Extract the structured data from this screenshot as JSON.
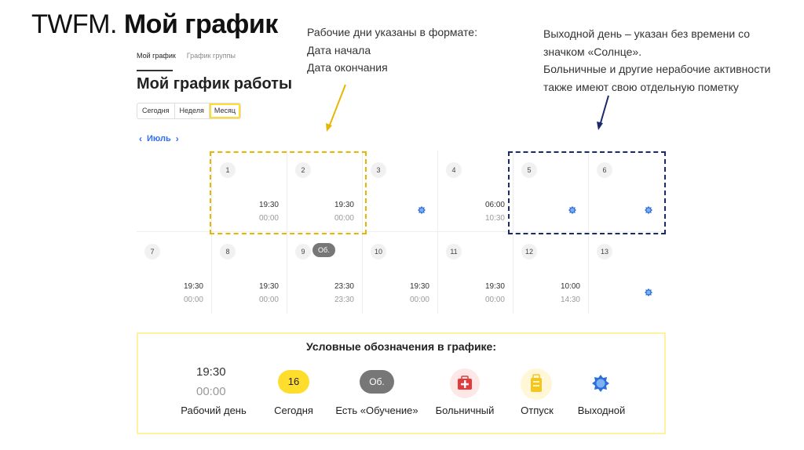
{
  "slide": {
    "title_prefix": "TWFM.",
    "title_main": "Мой график"
  },
  "notes": {
    "left": [
      "Рабочие дни указаны в формате:",
      "Дата начала",
      "Дата окончания"
    ],
    "right": [
      "Выходной день – указан без времени со",
      "значком «Солнце».",
      "Больничные и другие нерабочие активности",
      "также имеют свою отдельную пометку"
    ]
  },
  "app": {
    "tabs": [
      {
        "label": "Мой график",
        "active": true
      },
      {
        "label": "График группы",
        "active": false
      }
    ],
    "title": "Мой график работы",
    "periods": [
      {
        "label": "Сегодня",
        "active": false
      },
      {
        "label": "Неделя",
        "active": false
      },
      {
        "label": "Месяц",
        "active": true
      }
    ],
    "month": "Июль",
    "days": [
      {
        "num": "",
        "start": "",
        "end": "",
        "off": false,
        "badge": ""
      },
      {
        "num": "1",
        "start": "19:30",
        "end": "00:00",
        "off": false,
        "badge": ""
      },
      {
        "num": "2",
        "start": "19:30",
        "end": "00:00",
        "off": false,
        "badge": ""
      },
      {
        "num": "3",
        "start": "",
        "end": "",
        "off": true,
        "badge": ""
      },
      {
        "num": "4",
        "start": "06:00",
        "end": "10:30",
        "off": false,
        "badge": ""
      },
      {
        "num": "5",
        "start": "",
        "end": "",
        "off": true,
        "badge": ""
      },
      {
        "num": "6",
        "start": "",
        "end": "",
        "off": true,
        "badge": ""
      },
      {
        "num": "7",
        "start": "19:30",
        "end": "00:00",
        "off": false,
        "badge": ""
      },
      {
        "num": "8",
        "start": "19:30",
        "end": "00:00",
        "off": false,
        "badge": ""
      },
      {
        "num": "9",
        "start": "23:30",
        "end": "23:30",
        "off": false,
        "badge": "Об."
      },
      {
        "num": "10",
        "start": "19:30",
        "end": "00:00",
        "off": false,
        "badge": ""
      },
      {
        "num": "11",
        "start": "19:30",
        "end": "00:00",
        "off": false,
        "badge": ""
      },
      {
        "num": "12",
        "start": "10:00",
        "end": "14:30",
        "off": false,
        "badge": ""
      },
      {
        "num": "13",
        "start": "",
        "end": "",
        "off": true,
        "badge": ""
      }
    ]
  },
  "legend": {
    "title": "Условные обозначения в графике:",
    "work_start": "19:30",
    "work_end": "00:00",
    "work_label": "Рабочий день",
    "today_value": "16",
    "today_label": "Сегодня",
    "training_value": "Об.",
    "training_label": "Есть «Обучение»",
    "sick_label": "Больничный",
    "vacation_label": "Отпуск",
    "dayoff_label": "Выходной",
    "icons": [
      "first-aid-kit-icon",
      "suitcase-icon",
      "sun-icon"
    ]
  },
  "colors": {
    "accent_yellow": "#ffdd2d",
    "link_blue": "#336fee",
    "highlight_yellow": "#e4b800",
    "highlight_navy": "#1a2a6c",
    "sun_blue": "#2b6fd6"
  }
}
